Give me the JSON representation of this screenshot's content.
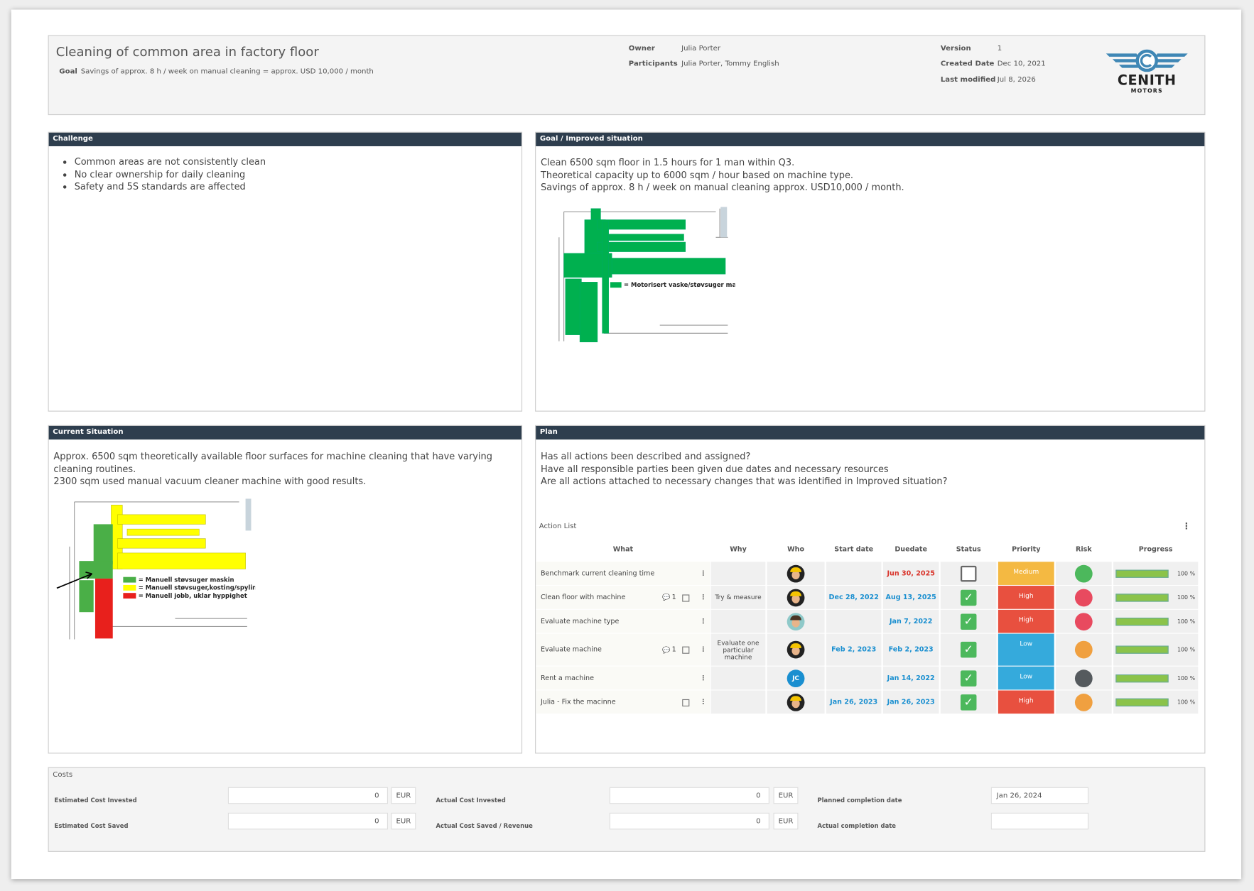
{
  "header": {
    "title": "Cleaning of common area in factory floor",
    "goal_label": "Goal",
    "goal": "Savings of approx. 8 h / week on manual cleaning = approx. USD 10,000 / month",
    "owner_label": "Owner",
    "owner": "Julia Porter",
    "participants_label": "Participants",
    "participants": "Julia Porter, Tommy English",
    "version_label": "Version",
    "version": "1",
    "created_label": "Created Date",
    "created": "Dec 10, 2021",
    "modified_label": "Last modified",
    "modified": "Jul 8, 2026",
    "logo_name": "CENITH",
    "logo_sub": "MOTORS"
  },
  "challenge": {
    "title": "Challenge",
    "bullets": [
      "Common areas are not consistently clean",
      "No clear ownership for daily cleaning",
      "Safety and 5S standards are affected"
    ]
  },
  "improved": {
    "title": "Goal / Improved situation",
    "lines": [
      "Clean 6500 sqm floor in 1.5 hours for 1 man within Q3.",
      "Theoretical capacity up to 6000 sqm / hour based on machine type.",
      "Savings of approx. 8 h / week on manual cleaning approx. USD10,000 / month."
    ],
    "legend": "= Motorisert vaske/støvsuger maskin"
  },
  "current": {
    "title": "Current Situation",
    "lines": [
      "Approx. 6500 sqm theoretically available floor surfaces for machine cleaning that have varying cleaning routines.",
      "2300 sqm used manual vacuum cleaner machine with good results."
    ],
    "legend": [
      "= Manuell støvsuger maskin",
      "= Manuell støvsuger,kosting/spyling",
      "= Manuell jobb, uklar hyppighet"
    ]
  },
  "plan": {
    "title": "Plan",
    "lines": [
      "Has all actions been described and assigned?",
      "Have all responsible parties been given due dates and necessary resources",
      "Are all actions attached to necessary changes that was identified in Improved situation?"
    ],
    "action_list_title": "Action List",
    "columns": [
      "What",
      "Why",
      "Who",
      "Start date",
      "Duedate",
      "Status",
      "Priority",
      "Risk",
      "Progress"
    ],
    "actions": [
      {
        "what": "Benchmark current cleaning time",
        "avatar": "worker",
        "due": "Jun 30, 2025",
        "due_color": "#d9342b",
        "done": false,
        "priority": "Medium",
        "priority_color": "#f4b942",
        "risk_color": "#4cb85c",
        "progress": {
          "value": 100,
          "label": "100 %"
        }
      },
      {
        "what": "Clean floor with machine",
        "comments": "1",
        "copy": true,
        "why": "Try & measure",
        "avatar": "worker",
        "start": "Dec 28, 2022",
        "due": "Aug 13, 2025",
        "due_color": "#1a8fd0",
        "done": true,
        "priority": "High",
        "priority_color": "#e8503f",
        "risk_color": "#e84a5f",
        "progress": {
          "value": 100,
          "label": "100 %"
        }
      },
      {
        "what": "Evaluate machine type",
        "avatar": "man",
        "due": "Jan 7, 2022",
        "due_color": "#1a8fd0",
        "done": true,
        "priority": "High",
        "priority_color": "#e8503f",
        "risk_color": "#e84a5f",
        "progress": {
          "value": 100,
          "label": "100 %"
        }
      },
      {
        "what": "Evaluate machine",
        "comments": "1",
        "copy": true,
        "why": "Evaluate one particular machine",
        "avatar": "worker",
        "start": "Feb 2, 2023",
        "due": "Feb 2, 2023",
        "due_color": "#1a8fd0",
        "done": true,
        "priority": "Low",
        "priority_color": "#35aadc",
        "risk_color": "#f0a040",
        "progress": {
          "value": 100,
          "label": "100 %"
        }
      },
      {
        "what": "Rent a machine",
        "avatar": "initials",
        "initials": "JC",
        "due": "Jan 14, 2022",
        "due_color": "#1a8fd0",
        "done": true,
        "priority": "Low",
        "priority_color": "#35aadc",
        "risk_color": "#555a5e",
        "progress": {
          "value": 100,
          "label": "100 %"
        }
      },
      {
        "what": "Julia - Fix the macinne",
        "copy": true,
        "avatar": "worker",
        "start": "Jan 26, 2023",
        "due": "Jan 26, 2023",
        "due_color": "#1a8fd0",
        "done": true,
        "priority": "High",
        "priority_color": "#e8503f",
        "risk_color": "#f0a040",
        "progress": {
          "value": 100,
          "label": "100 %"
        }
      }
    ]
  },
  "costs": {
    "title": "Costs",
    "currency": "EUR",
    "fields": [
      {
        "label": "Estimated Cost Invested",
        "value": "0"
      },
      {
        "label": "Estimated Cost Saved",
        "value": "0"
      },
      {
        "label": "Actual Cost Invested",
        "value": "0"
      },
      {
        "label": "Actual Cost Saved / Revenue",
        "value": "0"
      }
    ],
    "planned_label": "Planned completion date",
    "planned": "Jan 26, 2024",
    "actual_label": "Actual completion date"
  }
}
